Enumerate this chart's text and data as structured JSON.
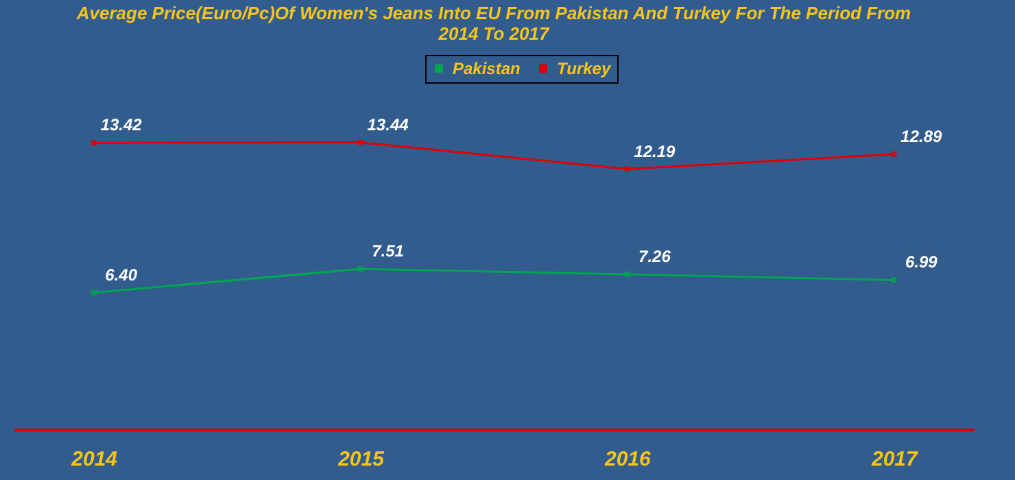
{
  "chart_data": {
    "type": "line",
    "title": "Average Price(Euro/Pc)Of Women's Jeans Into EU From Pakistan And Turkey For The Period From 2014 To 2017",
    "categories": [
      "2014",
      "2015",
      "2016",
      "2017"
    ],
    "series": [
      {
        "name": "Pakistan",
        "color": "#00a651",
        "values": [
          6.4,
          7.51,
          7.26,
          6.99
        ],
        "value_labels": [
          "6.40",
          "7.51",
          "7.26",
          "6.99"
        ]
      },
      {
        "name": "Turkey",
        "color": "#e00000",
        "values": [
          13.42,
          13.44,
          12.19,
          12.89
        ],
        "value_labels": [
          "13.42",
          "13.44",
          "12.19",
          "12.89"
        ]
      }
    ],
    "data_labels": true,
    "legend": "top",
    "marker": "square"
  }
}
